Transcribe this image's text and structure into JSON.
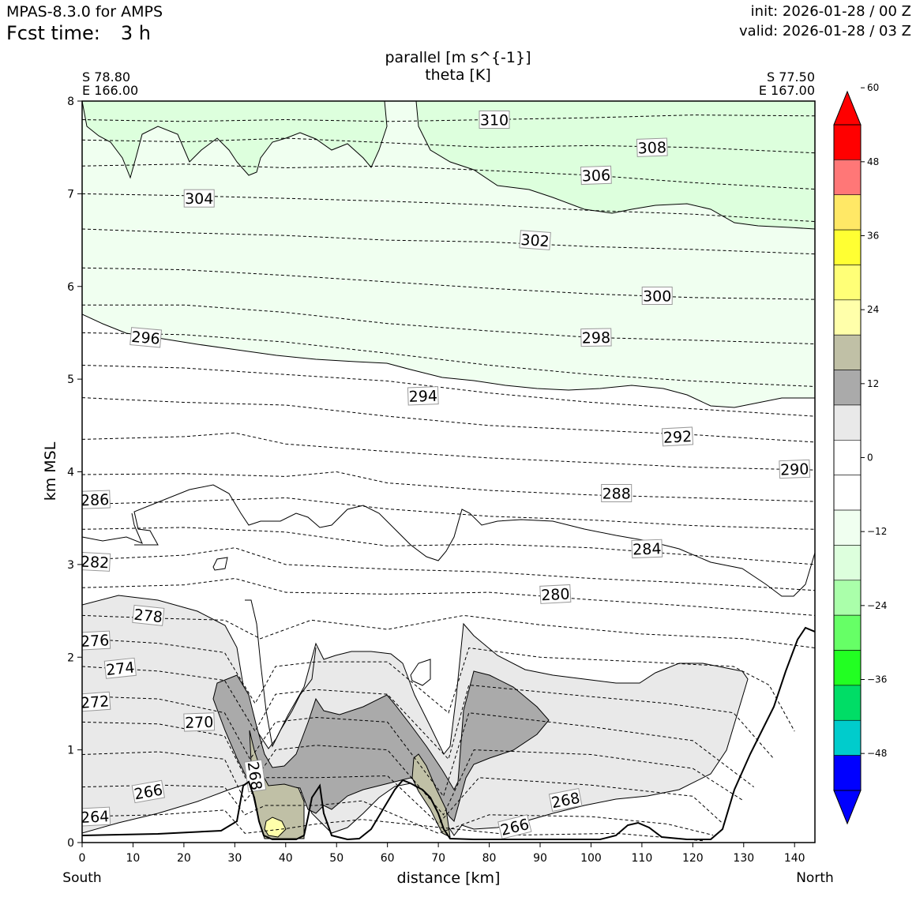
{
  "header": {
    "model": "MPAS-8.3.0 for AMPS",
    "fcst_label": "Fcst time:",
    "fcst_value": "3 h",
    "init": "init: 2026-01-28 / 00 Z",
    "valid": "valid: 2026-01-28 / 03 Z"
  },
  "chart_data": {
    "type": "contour",
    "title_line1": "parallel [m s^{-1}]",
    "title_line2": "theta [K]",
    "xlabel": "distance [km]",
    "ylabel": "km MSL",
    "xlim": [
      0,
      144
    ],
    "ylim": [
      0,
      8
    ],
    "xticks": [
      "0",
      "10",
      "20",
      "30",
      "40",
      "50",
      "60",
      "70",
      "80",
      "90",
      "100",
      "110",
      "120",
      "130",
      "140"
    ],
    "yticks": [
      "0",
      "1",
      "2",
      "3",
      "4",
      "5",
      "6",
      "7",
      "8"
    ],
    "left_end": {
      "lat": "S 78.80",
      "lon": "E 166.00",
      "dir": "South"
    },
    "right_end": {
      "lat": "S 77.50",
      "lon": "E 167.00",
      "dir": "North"
    },
    "colorbar": {
      "levels": [
        -60,
        -54,
        -48,
        -42,
        -36,
        -30,
        -24,
        -18,
        -12,
        -6,
        0,
        6,
        12,
        18,
        24,
        30,
        36,
        42,
        48,
        54,
        60
      ],
      "tick_labels": [
        "60",
        "48",
        "36",
        "24",
        "12",
        "0",
        "−12",
        "−24",
        "−36",
        "−48"
      ],
      "colors": [
        "#0000ff",
        "#00cccc",
        "#00dd66",
        "#22ff22",
        "#66ff66",
        "#aaffaa",
        "#ddffdd",
        "#f0fff0",
        "#ffffff",
        "#ffffff",
        "#e9e9e9",
        "#aaaaaa",
        "#c0c0a6",
        "#ffffaa",
        "#ffff77",
        "#ffff33",
        "#ffe866",
        "#ff7777",
        "#ff0000"
      ],
      "top_extend_color": "#ff0000",
      "bottom_extend_color": "#0000ff"
    },
    "theta_labels": [
      {
        "text": "310",
        "x": 81,
        "y": 7.8,
        "rot": 0
      },
      {
        "text": "308",
        "x": 112,
        "y": 7.5,
        "rot": -2
      },
      {
        "text": "306",
        "x": 101,
        "y": 7.2,
        "rot": -2
      },
      {
        "text": "304",
        "x": 23,
        "y": 6.95,
        "rot": 0
      },
      {
        "text": "302",
        "x": 89,
        "y": 6.5,
        "rot": 4
      },
      {
        "text": "300",
        "x": 113,
        "y": 5.9,
        "rot": 0
      },
      {
        "text": "298",
        "x": 101,
        "y": 5.45,
        "rot": -1
      },
      {
        "text": "296",
        "x": 12.5,
        "y": 5.45,
        "rot": 5
      },
      {
        "text": "294",
        "x": 67,
        "y": 4.82,
        "rot": -2
      },
      {
        "text": "292",
        "x": 117,
        "y": 4.38,
        "rot": -3
      },
      {
        "text": "290",
        "x": 140,
        "y": 4.03,
        "rot": -2
      },
      {
        "text": "288",
        "x": 105,
        "y": 3.77,
        "rot": 0
      },
      {
        "text": "286",
        "x": 2.5,
        "y": 3.7,
        "rot": -2
      },
      {
        "text": "284",
        "x": 111,
        "y": 3.17,
        "rot": -2
      },
      {
        "text": "282",
        "x": 2.5,
        "y": 3.03,
        "rot": 3
      },
      {
        "text": "280",
        "x": 93,
        "y": 2.68,
        "rot": -3
      },
      {
        "text": "278",
        "x": 13,
        "y": 2.45,
        "rot": 6
      },
      {
        "text": "276",
        "x": 2.5,
        "y": 2.18,
        "rot": -3
      },
      {
        "text": "274",
        "x": 7.5,
        "y": 1.88,
        "rot": -6
      },
      {
        "text": "272",
        "x": 2.5,
        "y": 1.52,
        "rot": -4
      },
      {
        "text": "270",
        "x": 23,
        "y": 1.3,
        "rot": -2
      },
      {
        "text": "268",
        "x": 34,
        "y": 0.72,
        "rot": 82
      },
      {
        "text": "266",
        "x": 13,
        "y": 0.55,
        "rot": -10
      },
      {
        "text": "268",
        "x": 95,
        "y": 0.46,
        "rot": -11
      },
      {
        "text": "266",
        "x": 85,
        "y": 0.17,
        "rot": -14
      },
      {
        "text": "264",
        "x": 2.5,
        "y": 0.28,
        "rot": -3
      }
    ],
    "theta_contours": [
      {
        "level": 310,
        "pts": [
          [
            0,
            7.8
          ],
          [
            20,
            7.78
          ],
          [
            40,
            7.8
          ],
          [
            60,
            7.78
          ],
          [
            80,
            7.8
          ],
          [
            100,
            7.82
          ],
          [
            120,
            7.85
          ],
          [
            144,
            7.84
          ]
        ]
      },
      {
        "level": 308,
        "pts": [
          [
            0,
            7.58
          ],
          [
            20,
            7.56
          ],
          [
            40,
            7.6
          ],
          [
            60,
            7.55
          ],
          [
            80,
            7.5
          ],
          [
            100,
            7.52
          ],
          [
            120,
            7.5
          ],
          [
            144,
            7.44
          ]
        ]
      },
      {
        "level": 306,
        "pts": [
          [
            0,
            7.3
          ],
          [
            20,
            7.32
          ],
          [
            40,
            7.28
          ],
          [
            60,
            7.3
          ],
          [
            80,
            7.25
          ],
          [
            100,
            7.2
          ],
          [
            120,
            7.12
          ],
          [
            144,
            7.05
          ]
        ]
      },
      {
        "level": 304,
        "pts": [
          [
            0,
            7.0
          ],
          [
            20,
            6.98
          ],
          [
            40,
            6.95
          ],
          [
            60,
            6.92
          ],
          [
            80,
            6.88
          ],
          [
            100,
            6.82
          ],
          [
            120,
            6.78
          ],
          [
            144,
            6.7
          ]
        ]
      },
      {
        "level": 302,
        "pts": [
          [
            0,
            6.62
          ],
          [
            20,
            6.58
          ],
          [
            40,
            6.55
          ],
          [
            60,
            6.5
          ],
          [
            80,
            6.48
          ],
          [
            100,
            6.43
          ],
          [
            120,
            6.4
          ],
          [
            144,
            6.35
          ]
        ]
      },
      {
        "level": 300,
        "pts": [
          [
            0,
            6.2
          ],
          [
            20,
            6.18
          ],
          [
            40,
            6.12
          ],
          [
            60,
            6.05
          ],
          [
            80,
            5.98
          ],
          [
            100,
            5.92
          ],
          [
            120,
            5.88
          ],
          [
            144,
            5.86
          ]
        ]
      },
      {
        "level": 298,
        "pts": [
          [
            0,
            5.8
          ],
          [
            20,
            5.8
          ],
          [
            40,
            5.72
          ],
          [
            60,
            5.6
          ],
          [
            80,
            5.52
          ],
          [
            100,
            5.45
          ],
          [
            120,
            5.42
          ],
          [
            144,
            5.38
          ]
        ]
      },
      {
        "level": 296,
        "pts": [
          [
            0,
            5.5
          ],
          [
            20,
            5.48
          ],
          [
            40,
            5.4
          ],
          [
            60,
            5.28
          ],
          [
            80,
            5.15
          ],
          [
            100,
            5.05
          ],
          [
            120,
            4.98
          ],
          [
            144,
            4.92
          ]
        ]
      },
      {
        "level": 294,
        "pts": [
          [
            0,
            5.15
          ],
          [
            20,
            5.12
          ],
          [
            40,
            5.05
          ],
          [
            60,
            4.98
          ],
          [
            80,
            4.85
          ],
          [
            100,
            4.75
          ],
          [
            120,
            4.68
          ],
          [
            144,
            4.6
          ]
        ]
      },
      {
        "level": 292,
        "pts": [
          [
            0,
            4.8
          ],
          [
            20,
            4.75
          ],
          [
            40,
            4.72
          ],
          [
            60,
            4.6
          ],
          [
            80,
            4.5
          ],
          [
            100,
            4.45
          ],
          [
            120,
            4.4
          ],
          [
            144,
            4.32
          ]
        ]
      },
      {
        "level": 290,
        "pts": [
          [
            0,
            4.35
          ],
          [
            20,
            4.38
          ],
          [
            30,
            4.42
          ],
          [
            40,
            4.3
          ],
          [
            60,
            4.22
          ],
          [
            80,
            4.15
          ],
          [
            100,
            4.1
          ],
          [
            120,
            4.05
          ],
          [
            144,
            4.02
          ]
        ]
      },
      {
        "level": 288,
        "pts": [
          [
            0,
            3.97
          ],
          [
            20,
            3.98
          ],
          [
            40,
            3.95
          ],
          [
            50,
            4.0
          ],
          [
            60,
            3.88
          ],
          [
            80,
            3.8
          ],
          [
            100,
            3.75
          ],
          [
            120,
            3.72
          ],
          [
            144,
            3.68
          ]
        ]
      },
      {
        "level": 286,
        "pts": [
          [
            0,
            3.65
          ],
          [
            20,
            3.68
          ],
          [
            40,
            3.72
          ],
          [
            60,
            3.6
          ],
          [
            80,
            3.52
          ],
          [
            100,
            3.48
          ],
          [
            120,
            3.42
          ],
          [
            144,
            3.38
          ]
        ]
      },
      {
        "level": 284,
        "pts": [
          [
            0,
            3.38
          ],
          [
            20,
            3.4
          ],
          [
            40,
            3.35
          ],
          [
            60,
            3.2
          ],
          [
            80,
            3.22
          ],
          [
            100,
            3.18
          ],
          [
            120,
            3.1
          ],
          [
            144,
            3.0
          ]
        ]
      },
      {
        "level": 282,
        "pts": [
          [
            0,
            3.05
          ],
          [
            20,
            3.1
          ],
          [
            30,
            3.18
          ],
          [
            40,
            3.0
          ],
          [
            60,
            2.95
          ],
          [
            80,
            2.92
          ],
          [
            100,
            2.85
          ],
          [
            120,
            2.8
          ],
          [
            144,
            2.72
          ]
        ]
      },
      {
        "level": 280,
        "pts": [
          [
            0,
            2.75
          ],
          [
            20,
            2.78
          ],
          [
            30,
            2.85
          ],
          [
            40,
            2.7
          ],
          [
            60,
            2.68
          ],
          [
            80,
            2.7
          ],
          [
            100,
            2.62
          ],
          [
            120,
            2.55
          ],
          [
            144,
            2.45
          ]
        ]
      },
      {
        "level": 278,
        "pts": [
          [
            0,
            2.45
          ],
          [
            15,
            2.42
          ],
          [
            28,
            2.4
          ],
          [
            35,
            2.2
          ],
          [
            45,
            2.4
          ],
          [
            60,
            2.3
          ],
          [
            75,
            2.45
          ],
          [
            90,
            2.35
          ],
          [
            110,
            2.25
          ],
          [
            130,
            2.2
          ],
          [
            144,
            2.1
          ]
        ]
      },
      {
        "level": 276,
        "pts": [
          [
            0,
            2.2
          ],
          [
            15,
            2.15
          ],
          [
            28,
            2.05
          ],
          [
            34,
            1.5
          ],
          [
            38,
            1.9
          ],
          [
            46,
            1.95
          ],
          [
            60,
            1.95
          ],
          [
            72,
            1.4
          ],
          [
            76,
            2.1
          ],
          [
            90,
            2.0
          ],
          [
            110,
            1.95
          ],
          [
            128,
            1.9
          ],
          [
            135,
            1.7
          ],
          [
            140,
            1.2
          ]
        ]
      },
      {
        "level": 274,
        "pts": [
          [
            0,
            1.9
          ],
          [
            15,
            1.85
          ],
          [
            28,
            1.75
          ],
          [
            34,
            1.2
          ],
          [
            38,
            1.6
          ],
          [
            46,
            1.65
          ],
          [
            60,
            1.6
          ],
          [
            72,
            0.9
          ],
          [
            76,
            1.7
          ],
          [
            95,
            1.6
          ],
          [
            115,
            1.5
          ],
          [
            128,
            1.4
          ],
          [
            136,
            0.9
          ]
        ]
      },
      {
        "level": 272,
        "pts": [
          [
            0,
            1.58
          ],
          [
            15,
            1.55
          ],
          [
            28,
            1.4
          ],
          [
            33,
            0.9
          ],
          [
            38,
            1.3
          ],
          [
            46,
            1.35
          ],
          [
            60,
            1.3
          ],
          [
            71,
            0.5
          ],
          [
            76,
            1.4
          ],
          [
            100,
            1.25
          ],
          [
            120,
            1.1
          ],
          [
            132,
            0.6
          ]
        ]
      },
      {
        "level": 270,
        "pts": [
          [
            0,
            1.3
          ],
          [
            15,
            1.28
          ],
          [
            28,
            1.15
          ],
          [
            33,
            0.6
          ],
          [
            38,
            1.0
          ],
          [
            46,
            1.05
          ],
          [
            60,
            1.0
          ],
          [
            71,
            0.3
          ],
          [
            77,
            1.0
          ],
          [
            100,
            0.95
          ],
          [
            120,
            0.8
          ],
          [
            130,
            0.45
          ]
        ]
      },
      {
        "level": 268,
        "pts": [
          [
            0,
            0.95
          ],
          [
            15,
            0.98
          ],
          [
            28,
            0.9
          ],
          [
            32,
            0.45
          ],
          [
            36,
            0.7
          ],
          [
            46,
            0.7
          ],
          [
            60,
            0.72
          ],
          [
            70,
            0.2
          ],
          [
            78,
            0.7
          ],
          [
            100,
            0.62
          ],
          [
            120,
            0.5
          ],
          [
            126,
            0.2
          ]
        ]
      },
      {
        "level": 266,
        "pts": [
          [
            0,
            0.6
          ],
          [
            15,
            0.62
          ],
          [
            28,
            0.6
          ],
          [
            32,
            0.3
          ],
          [
            36,
            0.4
          ],
          [
            46,
            0.4
          ],
          [
            55,
            0.45
          ],
          [
            70,
            0.1
          ],
          [
            80,
            0.3
          ],
          [
            100,
            0.28
          ],
          [
            115,
            0.2
          ],
          [
            124,
            0.08
          ]
        ]
      },
      {
        "level": 264,
        "pts": [
          [
            0,
            0.28
          ],
          [
            15,
            0.3
          ],
          [
            28,
            0.35
          ],
          [
            32,
            0.1
          ],
          [
            40,
            0.15
          ],
          [
            46,
            0.2
          ],
          [
            55,
            0.25
          ],
          [
            85,
            0.08
          ],
          [
            105,
            0.1
          ],
          [
            122,
            0.02
          ]
        ]
      }
    ]
  }
}
